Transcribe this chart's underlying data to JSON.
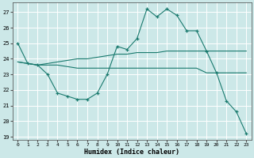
{
  "xlabel": "Humidex (Indice chaleur)",
  "bg_color": "#cce8e8",
  "grid_color": "#b0d8d8",
  "line_color": "#1a7a6e",
  "xlim": [
    -0.5,
    23.5
  ],
  "ylim": [
    18.8,
    27.6
  ],
  "yticks": [
    19,
    20,
    21,
    22,
    23,
    24,
    25,
    26,
    27
  ],
  "xticks": [
    0,
    1,
    2,
    3,
    4,
    5,
    6,
    7,
    8,
    9,
    10,
    11,
    12,
    13,
    14,
    15,
    16,
    17,
    18,
    19,
    20,
    21,
    22,
    23
  ],
  "line1_x": [
    0,
    1,
    2,
    3,
    4,
    5,
    6,
    7,
    8,
    9,
    10,
    11,
    12,
    13,
    14,
    15,
    16,
    17,
    18,
    19,
    20,
    21,
    22,
    23
  ],
  "line1_y": [
    25.0,
    23.7,
    23.6,
    23.0,
    21.8,
    21.6,
    21.4,
    21.4,
    21.8,
    23.0,
    24.8,
    24.6,
    25.3,
    27.2,
    26.7,
    27.2,
    26.8,
    25.8,
    25.8,
    24.5,
    23.1,
    21.3,
    20.6,
    19.2
  ],
  "line2_x": [
    0,
    1,
    2,
    3,
    4,
    5,
    6,
    7,
    8,
    9,
    10,
    11,
    12,
    13,
    14,
    15,
    16,
    17,
    18,
    19,
    20,
    21,
    22,
    23
  ],
  "line2_y": [
    23.8,
    23.7,
    23.6,
    23.6,
    23.6,
    23.5,
    23.4,
    23.4,
    23.4,
    23.4,
    23.4,
    23.4,
    23.4,
    23.4,
    23.4,
    23.4,
    23.4,
    23.4,
    23.4,
    23.1,
    23.1,
    23.1,
    23.1,
    23.1
  ],
  "line3_x": [
    0,
    1,
    2,
    3,
    4,
    5,
    6,
    7,
    8,
    9,
    10,
    11,
    12,
    13,
    14,
    15,
    16,
    17,
    18,
    19,
    20,
    21,
    22,
    23
  ],
  "line3_y": [
    23.8,
    23.7,
    23.6,
    23.7,
    23.8,
    23.9,
    24.0,
    24.0,
    24.1,
    24.2,
    24.3,
    24.3,
    24.4,
    24.4,
    24.4,
    24.5,
    24.5,
    24.5,
    24.5,
    24.5,
    24.5,
    24.5,
    24.5,
    24.5
  ]
}
